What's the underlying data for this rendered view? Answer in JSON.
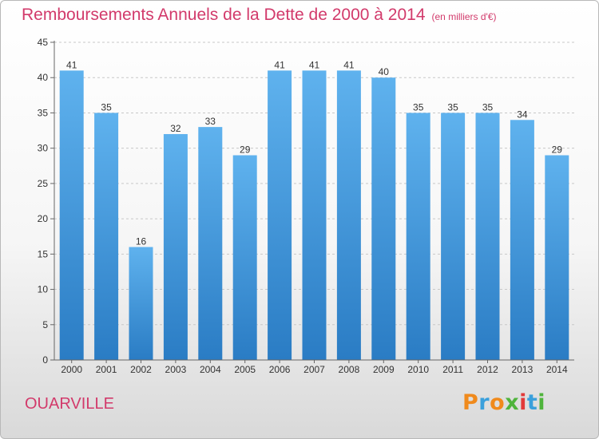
{
  "chart_data": {
    "type": "bar",
    "title": "Remboursements Annuels de la Dette de 2000 à 2014",
    "subtitle": "(en milliers d'€)",
    "categories": [
      "2000",
      "2001",
      "2002",
      "2003",
      "2004",
      "2005",
      "2006",
      "2007",
      "2008",
      "2009",
      "2010",
      "2011",
      "2012",
      "2013",
      "2014"
    ],
    "values": [
      41,
      35,
      16,
      32,
      33,
      29,
      41,
      41,
      41,
      40,
      35,
      35,
      35,
      34,
      29
    ],
    "ylim": [
      0,
      45
    ],
    "yticks": [
      0,
      5,
      10,
      15,
      20,
      25,
      30,
      35,
      40,
      45
    ],
    "grid": true,
    "bar_color": "#3a8fd8"
  },
  "footer": {
    "city": "OUARVILLE",
    "logo_letters": [
      "P",
      "r",
      "o",
      "x",
      "i",
      "t",
      "i"
    ],
    "logo_colors": [
      "#f08a1c",
      "#3aa0dc",
      "#f08a1c",
      "#4fb43c",
      "#e23a3a",
      "#3aa0dc",
      "#4fb43c"
    ]
  }
}
